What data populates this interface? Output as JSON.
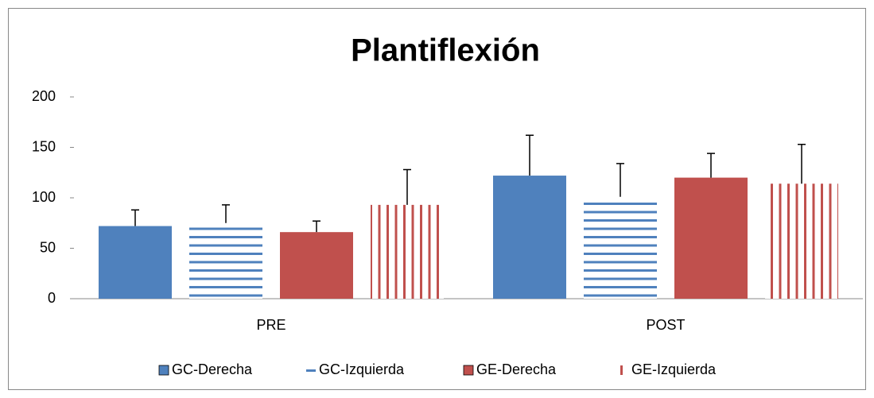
{
  "chart_data": {
    "type": "bar",
    "title": "Plantiflexión",
    "categories": [
      "PRE",
      "POST"
    ],
    "series": [
      {
        "name": "GC-Derecha",
        "color": "#4f81bd",
        "pattern": "solid",
        "values": [
          72,
          122
        ],
        "errors": [
          16,
          40
        ]
      },
      {
        "name": "GC-Izquierda",
        "color": "#4f81bd",
        "pattern": "horizontal",
        "values": [
          75,
          101
        ],
        "errors": [
          18,
          33
        ]
      },
      {
        "name": "GE-Derecha",
        "color": "#c0504d",
        "pattern": "solid",
        "values": [
          66,
          120
        ],
        "errors": [
          11,
          24
        ]
      },
      {
        "name": "GE-Izquierda",
        "color": "#c0504d",
        "pattern": "vertical",
        "values": [
          93,
          114
        ],
        "errors": [
          35,
          39
        ]
      }
    ],
    "ylim": [
      0,
      200
    ],
    "yticks": [
      0,
      50,
      100,
      150,
      200
    ],
    "grid": false,
    "legend": "bottom"
  }
}
